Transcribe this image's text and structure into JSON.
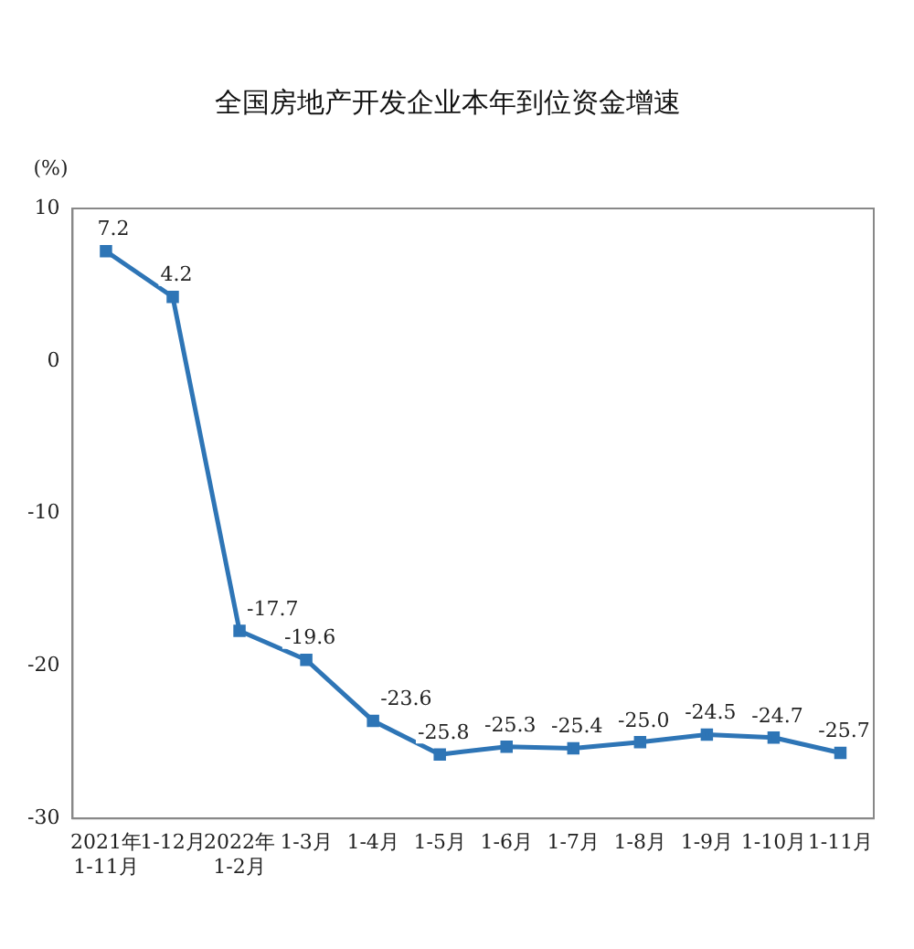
{
  "chart_data": {
    "type": "line",
    "title": "全国房地产开发企业本年到位资金增速",
    "ylabel": "(%)",
    "categories": [
      "2021年\n1-11月",
      "1-12月",
      "2022年\n1-2月",
      "1-3月",
      "1-4月",
      "1-5月",
      "1-6月",
      "1-7月",
      "1-8月",
      "1-9月",
      "1-10月",
      "1-11月"
    ],
    "series": [
      {
        "color": "#2e75b6",
        "values": [
          7.2,
          4.2,
          -17.7,
          -19.6,
          -23.6,
          -25.8,
          -25.3,
          -25.4,
          -25.0,
          -24.5,
          -24.7,
          -25.7
        ],
        "value_labels": [
          "7.2",
          "4.2",
          "-17.7",
          "-19.6",
          "-23.6",
          "-25.8",
          "-25.3",
          "-25.4",
          "-25.0",
          "-24.5",
          "-24.7",
          "-25.7"
        ]
      }
    ],
    "ylim": [
      -30,
      10
    ],
    "yticks": [
      -30,
      -20,
      -10,
      0,
      10
    ],
    "grid": false,
    "legend": false,
    "marker": "square",
    "line_style": "solid"
  }
}
